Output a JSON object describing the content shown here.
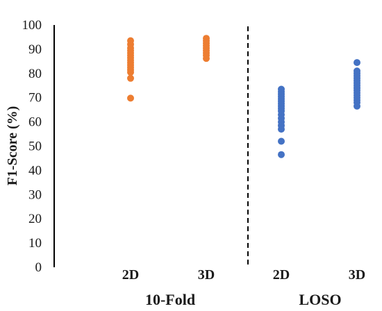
{
  "chart_data": {
    "type": "scatter",
    "ylabel": "F1-Score (%)",
    "ylim": [
      0,
      100
    ],
    "yticks": [
      0,
      10,
      20,
      30,
      40,
      50,
      60,
      70,
      80,
      90,
      100
    ],
    "categories": [
      "2D",
      "3D",
      "2D",
      "3D"
    ],
    "groups": [
      {
        "label": "10-Fold",
        "categories": [
          "2D",
          "3D"
        ]
      },
      {
        "label": "LOSO",
        "categories": [
          "2D",
          "3D"
        ]
      }
    ],
    "separator": {
      "style": "dashed",
      "between_groups": true
    },
    "series": [
      {
        "group": "10-Fold",
        "category": "2D",
        "color": "#ED7D31",
        "values": [
          93.5,
          92,
          90.5,
          89.5,
          88.5,
          87.5,
          86.5,
          85.5,
          84.5,
          83.5,
          82.5,
          81.5,
          80.5,
          78,
          69.8
        ]
      },
      {
        "group": "10-Fold",
        "category": "3D",
        "color": "#ED7D31",
        "values": [
          94.5,
          93.5,
          92.5,
          91.5,
          90.5,
          89.5,
          88.5,
          87.5,
          86.2
        ]
      },
      {
        "group": "LOSO",
        "category": "2D",
        "color": "#4472C4",
        "values": [
          73.5,
          72.5,
          71.5,
          70.5,
          69.5,
          68.5,
          67.5,
          66.5,
          65.5,
          64.5,
          63,
          61.5,
          60,
          58.5,
          57,
          52,
          46.5
        ]
      },
      {
        "group": "LOSO",
        "category": "3D",
        "color": "#4472C4",
        "values": [
          84.5,
          81,
          80,
          79,
          78,
          77,
          76,
          75,
          74,
          73,
          72,
          71,
          70,
          69,
          68,
          66.5
        ]
      }
    ]
  }
}
